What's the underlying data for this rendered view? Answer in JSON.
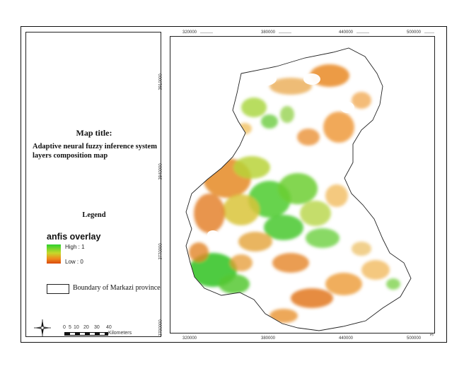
{
  "panel": {
    "title": "Map title:",
    "subtitle": "Adaptive neural fuzzy inference system layers composition map",
    "legend_heading": "Legend",
    "layer_name": "anfis overlay",
    "high_label": "High : 1",
    "low_label": "Low : 0",
    "boundary_label": "Boundary of Markazi province",
    "scale_labels": [
      "0",
      "5",
      "10",
      "20",
      "30",
      "40"
    ],
    "scale_unit": "Kilometers"
  },
  "grid": {
    "x_labels": [
      "320000",
      "380000",
      "440000",
      "500000"
    ],
    "y_labels": [
      "3910000",
      "3840000",
      "3770000",
      "3700000"
    ]
  },
  "colors": {
    "high": "#2ed12e",
    "mid": "#c6d82a",
    "low": "#d84a0e"
  },
  "icons": {
    "north_arrow": "compass-rose-icon"
  }
}
